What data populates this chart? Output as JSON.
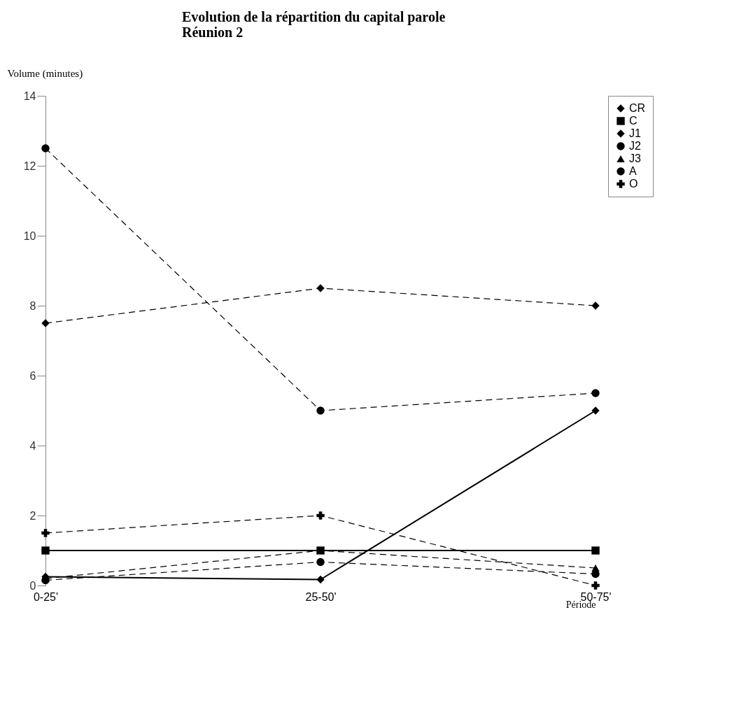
{
  "chart_data": {
    "type": "line",
    "title": [
      "Evolution de la répartition du capital parole",
      "Réunion 2"
    ],
    "xlabel": "Période",
    "ylabel": "Volume (minutes)",
    "categories": [
      "0-25'",
      "25-50'",
      "50-75'"
    ],
    "ylim": [
      0,
      14
    ],
    "yticks": [
      0,
      2,
      4,
      6,
      8,
      10,
      12,
      14
    ],
    "grid": false,
    "legend": "right",
    "series": [
      {
        "name": "CR",
        "color": "#000000",
        "marker": "diamond",
        "line_style": "solid",
        "values": [
          0.25,
          0.17,
          5
        ]
      },
      {
        "name": "C",
        "color": "#000000",
        "marker": "square",
        "line_style": "solid",
        "values": [
          1,
          1,
          1
        ]
      },
      {
        "name": "J1",
        "color": "#000000",
        "marker": "diamond",
        "line_style": "dashed",
        "values": [
          7.5,
          8.5,
          8
        ]
      },
      {
        "name": "J2",
        "color": "#000000",
        "marker": "circle",
        "line_style": "dashed",
        "values": [
          0.15,
          0.67,
          0.33
        ]
      },
      {
        "name": "J3",
        "color": "#000000",
        "marker": "triangle",
        "line_style": "dashed",
        "values": [
          0.2,
          1,
          0.5
        ]
      },
      {
        "name": "A",
        "color": "#000000",
        "marker": "circle",
        "line_style": "dashed",
        "values": [
          12.5,
          5,
          5.5
        ]
      },
      {
        "name": "O",
        "color": "#000000",
        "marker": "cross",
        "line_style": "dashed",
        "values": [
          1.5,
          2,
          0
        ]
      }
    ]
  }
}
